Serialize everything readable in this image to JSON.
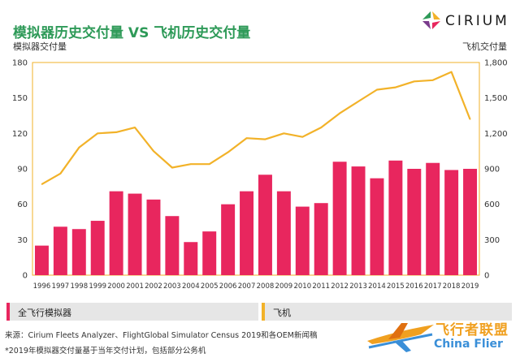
{
  "header": {
    "title": "模拟器历史交付量 VS 飞机历史交付量",
    "brand": "CIRIUM"
  },
  "chart_data": {
    "type": "bar",
    "categories": [
      "1996",
      "1997",
      "1998",
      "1999",
      "2000",
      "2001",
      "2002",
      "2003",
      "2004",
      "2005",
      "2006",
      "2007",
      "2008",
      "2009",
      "2010",
      "2011",
      "2012",
      "2013",
      "2014",
      "2015",
      "2016",
      "2017",
      "2018",
      "2019"
    ],
    "series": [
      {
        "name": "全飞行模拟器",
        "type": "bar",
        "axis": "left",
        "color": "#e8265e",
        "values": [
          25,
          41,
          39,
          46,
          71,
          69,
          64,
          50,
          28,
          37,
          60,
          71,
          85,
          71,
          58,
          61,
          96,
          92,
          82,
          97,
          90,
          95,
          89,
          90
        ]
      },
      {
        "name": "飞机",
        "type": "line",
        "axis": "right",
        "color": "#f2b229",
        "values": [
          770,
          860,
          1080,
          1200,
          1210,
          1250,
          1050,
          910,
          940,
          940,
          1040,
          1160,
          1150,
          1200,
          1170,
          1250,
          1370,
          1470,
          1570,
          1590,
          1640,
          1650,
          1720,
          1320
        ]
      }
    ],
    "ylabel_left": "模拟器交付量",
    "ylabel_right": "飞机交付量",
    "ylim_left": [
      0,
      180
    ],
    "yticks_left": [
      "0",
      "30",
      "60",
      "90",
      "120",
      "150",
      "180"
    ],
    "ylim_right": [
      0,
      1800
    ],
    "yticks_right": [
      "0",
      "300",
      "600",
      "900",
      "1,200",
      "1,500",
      "1,800"
    ],
    "grid": false
  },
  "legend": {
    "left_label": "全飞行模拟器",
    "right_label": "飞机"
  },
  "footnotes": {
    "source": "来源：Cirium Fleets Analyzer、FlightGlobal Simulator Census 2019和各OEM新闻稿",
    "note": "*2019年模拟器交付量基于当年交付计划，包括部分公务机"
  },
  "watermark": {
    "cn": "飞行者联盟",
    "en": "China Flier"
  }
}
